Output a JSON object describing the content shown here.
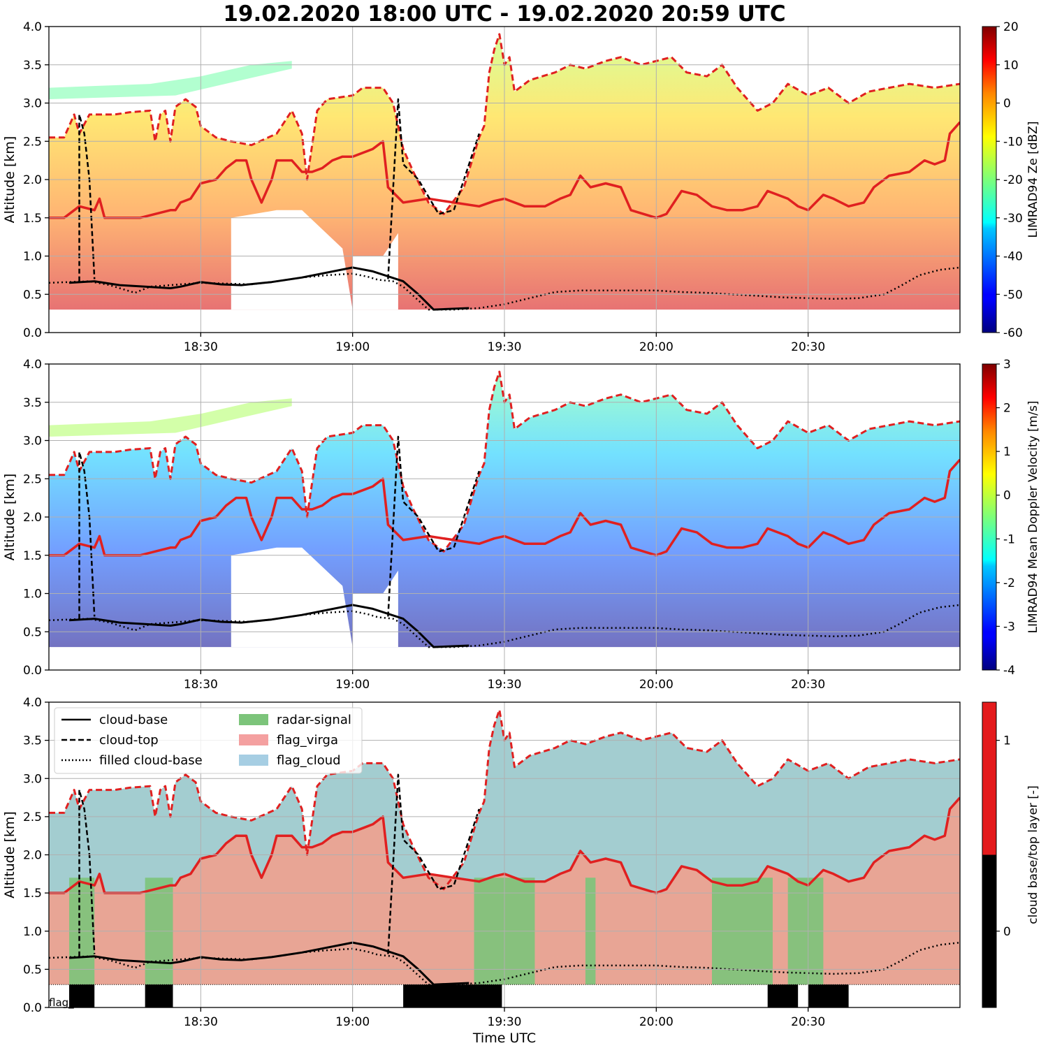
{
  "title": "19.02.2020 18:00 UTC - 19.02.2020 20:59 UTC",
  "colors": {
    "cloud_top_red": "#e02020",
    "cloud_line_black": "#000000",
    "radar_signal": "#7cc47a",
    "flag_virga": "#e8a595",
    "flag_cloud": "#a3cdd0",
    "cbar_black": "#000000",
    "cbar_red": "#e41a1c"
  },
  "chart_data": [
    {
      "type": "heatmap",
      "panel": "reflectivity",
      "ylabel": "Altitude [km]",
      "ylim": [
        0,
        4
      ],
      "yticks": [
        "0.0",
        "0.5",
        "1.0",
        "1.5",
        "2.0",
        "2.5",
        "3.0",
        "3.5",
        "4.0"
      ],
      "xlim_minutes": [
        0,
        180
      ],
      "xticks": [
        {
          "label": "18:30",
          "minute": 30
        },
        {
          "label": "19:00",
          "minute": 60
        },
        {
          "label": "19:30",
          "minute": 90
        },
        {
          "label": "20:00",
          "minute": 120
        },
        {
          "label": "20:30",
          "minute": 150
        }
      ],
      "colorbar": {
        "label": "LIMRAD94 Ze [dBZ]",
        "range": [
          -60,
          20
        ],
        "ticks": [
          "20",
          "10",
          "0",
          "-10",
          "-20",
          "-30",
          "-40",
          "-50",
          "-60"
        ],
        "colormap": "jet"
      },
      "grid": true
    },
    {
      "type": "heatmap",
      "panel": "doppler_velocity",
      "ylabel": "Altitude [km]",
      "ylim": [
        0,
        4
      ],
      "yticks": [
        "0.0",
        "0.5",
        "1.0",
        "1.5",
        "2.0",
        "2.5",
        "3.0",
        "3.5",
        "4.0"
      ],
      "xlim_minutes": [
        0,
        180
      ],
      "xticks": [
        {
          "label": "18:30",
          "minute": 30
        },
        {
          "label": "19:00",
          "minute": 60
        },
        {
          "label": "19:30",
          "minute": 90
        },
        {
          "label": "20:00",
          "minute": 120
        },
        {
          "label": "20:30",
          "minute": 150
        }
      ],
      "colorbar": {
        "label": "LIMRAD94 Mean Doppler Velocity [m/s]",
        "range": [
          -4,
          3
        ],
        "ticks": [
          "3",
          "2",
          "1",
          "0",
          "-1",
          "-2",
          "-3",
          "-4"
        ],
        "colormap": "jet"
      },
      "grid": true
    },
    {
      "type": "area",
      "panel": "flags",
      "ylabel": "Altitude [km]",
      "xlabel": "Time UTC",
      "ylim": [
        0,
        4
      ],
      "yticks": [
        "0.0",
        "0.5",
        "1.0",
        "1.5",
        "2.0",
        "2.5",
        "3.0",
        "3.5",
        "4.0"
      ],
      "xlim_minutes": [
        0,
        180
      ],
      "xticks": [
        {
          "label": "18:30",
          "minute": 30
        },
        {
          "label": "19:00",
          "minute": 60
        },
        {
          "label": "19:30",
          "minute": 90
        },
        {
          "label": "20:00",
          "minute": 120
        },
        {
          "label": "20:30",
          "minute": 150
        }
      ],
      "legend": {
        "placement": "top-left",
        "entries": [
          {
            "label": "cloud-base",
            "kind": "line-solid"
          },
          {
            "label": "cloud-top",
            "kind": "line-dashed"
          },
          {
            "label": "filled cloud-base",
            "kind": "line-dotted"
          },
          {
            "label": "radar-signal",
            "kind": "patch",
            "color": "#7cc47a"
          },
          {
            "label": "flag_virga",
            "kind": "patch",
            "color": "#f4a0a0"
          },
          {
            "label": "flag_cloud",
            "kind": "patch",
            "color": "#a6cee3"
          }
        ]
      },
      "annotation": "flag_rain",
      "rain_periods_minutes": [
        [
          4,
          9
        ],
        [
          19,
          24.5
        ],
        [
          70,
          89.5
        ],
        [
          142,
          148
        ],
        [
          150,
          158
        ]
      ],
      "colorbar": {
        "label": "cloud base/top layer [-]",
        "ticks": [
          "1",
          "0"
        ],
        "colors": [
          "#e41a1c",
          "#000000"
        ]
      },
      "grid": true
    }
  ],
  "series_profiles": {
    "cloud_top_km": [
      [
        0,
        2.55
      ],
      [
        3,
        2.55
      ],
      [
        5,
        2.85
      ],
      [
        6,
        2.6
      ],
      [
        8,
        2.85
      ],
      [
        13,
        2.85
      ],
      [
        16,
        2.88
      ],
      [
        20,
        2.9
      ],
      [
        21,
        2.5
      ],
      [
        22,
        2.85
      ],
      [
        23,
        2.9
      ],
      [
        24,
        2.5
      ],
      [
        25,
        2.95
      ],
      [
        27,
        3.05
      ],
      [
        29,
        2.95
      ],
      [
        30,
        2.7
      ],
      [
        33,
        2.55
      ],
      [
        36,
        2.5
      ],
      [
        40,
        2.45
      ],
      [
        45,
        2.6
      ],
      [
        48,
        2.9
      ],
      [
        50,
        2.6
      ],
      [
        51,
        2.0
      ],
      [
        53,
        2.9
      ],
      [
        55,
        3.05
      ],
      [
        60,
        3.1
      ],
      [
        62,
        3.2
      ],
      [
        66,
        3.2
      ],
      [
        68,
        3.0
      ],
      [
        70,
        2.4
      ],
      [
        72,
        2.1
      ],
      [
        75,
        1.7
      ],
      [
        78,
        1.55
      ],
      [
        82,
        1.9
      ],
      [
        85,
        2.55
      ],
      [
        86,
        2.7
      ],
      [
        87,
        3.4
      ],
      [
        88,
        3.7
      ],
      [
        89,
        3.9
      ],
      [
        90,
        3.5
      ],
      [
        91,
        3.6
      ],
      [
        92,
        3.15
      ],
      [
        95,
        3.3
      ],
      [
        100,
        3.4
      ],
      [
        103,
        3.5
      ],
      [
        106,
        3.45
      ],
      [
        110,
        3.55
      ],
      [
        113,
        3.6
      ],
      [
        117,
        3.5
      ],
      [
        120,
        3.55
      ],
      [
        123,
        3.6
      ],
      [
        126,
        3.4
      ],
      [
        130,
        3.35
      ],
      [
        133,
        3.5
      ],
      [
        136,
        3.2
      ],
      [
        140,
        2.9
      ],
      [
        143,
        3.0
      ],
      [
        146,
        3.25
      ],
      [
        150,
        3.1
      ],
      [
        154,
        3.2
      ],
      [
        158,
        3.0
      ],
      [
        162,
        3.15
      ],
      [
        166,
        3.2
      ],
      [
        170,
        3.25
      ],
      [
        175,
        3.2
      ],
      [
        180,
        3.25
      ]
    ],
    "upper_base_km": [
      [
        0,
        1.5
      ],
      [
        3,
        1.5
      ],
      [
        6,
        1.65
      ],
      [
        9,
        1.6
      ],
      [
        10,
        1.75
      ],
      [
        11,
        1.5
      ],
      [
        14,
        1.5
      ],
      [
        18,
        1.5
      ],
      [
        21,
        1.55
      ],
      [
        24,
        1.6
      ],
      [
        25,
        1.6
      ],
      [
        26,
        1.7
      ],
      [
        28,
        1.75
      ],
      [
        30,
        1.95
      ],
      [
        33,
        2.0
      ],
      [
        35,
        2.15
      ],
      [
        37,
        2.25
      ],
      [
        39,
        2.25
      ],
      [
        40,
        2.0
      ],
      [
        42,
        1.7
      ],
      [
        44,
        2.0
      ],
      [
        45,
        2.25
      ],
      [
        48,
        2.25
      ],
      [
        50,
        2.1
      ],
      [
        52,
        2.1
      ],
      [
        54,
        2.15
      ],
      [
        56,
        2.25
      ],
      [
        58,
        2.3
      ],
      [
        60,
        2.3
      ],
      [
        62,
        2.35
      ],
      [
        64,
        2.4
      ],
      [
        66,
        2.5
      ],
      [
        67,
        1.9
      ],
      [
        70,
        1.7
      ],
      [
        75,
        1.75
      ],
      [
        80,
        1.7
      ],
      [
        85,
        1.65
      ],
      [
        88,
        1.72
      ],
      [
        90,
        1.75
      ],
      [
        94,
        1.65
      ],
      [
        98,
        1.65
      ],
      [
        101,
        1.75
      ],
      [
        103,
        1.8
      ],
      [
        105,
        2.05
      ],
      [
        107,
        1.9
      ],
      [
        110,
        1.95
      ],
      [
        113,
        1.9
      ],
      [
        115,
        1.6
      ],
      [
        120,
        1.5
      ],
      [
        122,
        1.55
      ],
      [
        125,
        1.85
      ],
      [
        128,
        1.8
      ],
      [
        131,
        1.65
      ],
      [
        134,
        1.6
      ],
      [
        137,
        1.6
      ],
      [
        140,
        1.65
      ],
      [
        142,
        1.85
      ],
      [
        144,
        1.8
      ],
      [
        146,
        1.75
      ],
      [
        148,
        1.65
      ],
      [
        150,
        1.6
      ],
      [
        153,
        1.8
      ],
      [
        155,
        1.75
      ],
      [
        158,
        1.65
      ],
      [
        161,
        1.7
      ],
      [
        163,
        1.9
      ],
      [
        166,
        2.05
      ],
      [
        170,
        2.1
      ],
      [
        173,
        2.25
      ],
      [
        175,
        2.2
      ],
      [
        177,
        2.25
      ],
      [
        178,
        2.6
      ],
      [
        180,
        2.75
      ]
    ],
    "filled_base_km": [
      [
        0,
        0.65
      ],
      [
        8,
        0.67
      ],
      [
        12,
        0.62
      ],
      [
        17,
        0.52
      ],
      [
        20,
        0.6
      ],
      [
        30,
        0.65
      ],
      [
        40,
        0.63
      ],
      [
        45,
        0.67
      ],
      [
        50,
        0.72
      ],
      [
        55,
        0.75
      ],
      [
        60,
        0.77
      ],
      [
        63,
        0.73
      ],
      [
        65,
        0.69
      ],
      [
        68,
        0.67
      ],
      [
        70,
        0.6
      ],
      [
        75,
        0.3
      ],
      [
        80,
        0.3
      ],
      [
        85,
        0.32
      ],
      [
        90,
        0.37
      ],
      [
        95,
        0.45
      ],
      [
        100,
        0.53
      ],
      [
        105,
        0.55
      ],
      [
        110,
        0.55
      ],
      [
        115,
        0.55
      ],
      [
        120,
        0.55
      ],
      [
        125,
        0.53
      ],
      [
        130,
        0.52
      ],
      [
        135,
        0.5
      ],
      [
        140,
        0.48
      ],
      [
        145,
        0.46
      ],
      [
        150,
        0.45
      ],
      [
        155,
        0.44
      ],
      [
        160,
        0.45
      ],
      [
        165,
        0.5
      ],
      [
        168,
        0.6
      ],
      [
        172,
        0.75
      ],
      [
        176,
        0.82
      ],
      [
        180,
        0.85
      ]
    ],
    "lower_base_km": [
      [
        4,
        0.65
      ],
      [
        9,
        0.67
      ],
      [
        14,
        0.62
      ],
      [
        19,
        0.6
      ],
      [
        24,
        0.58
      ],
      [
        26,
        0.6
      ],
      [
        30,
        0.66
      ],
      [
        34,
        0.63
      ],
      [
        38,
        0.62
      ],
      [
        44,
        0.66
      ],
      [
        50,
        0.72
      ],
      [
        60,
        0.85
      ],
      [
        64,
        0.8
      ],
      [
        70,
        0.67
      ],
      [
        73,
        0.5
      ],
      [
        76,
        0.3
      ],
      [
        83,
        0.32
      ],
      [
        93,
        0.52
      ],
      [
        99,
        0.53
      ],
      [
        141,
        0.43
      ],
      [
        146,
        0.4
      ],
      [
        153,
        0.46
      ],
      [
        156,
        0.46
      ]
    ]
  }
}
